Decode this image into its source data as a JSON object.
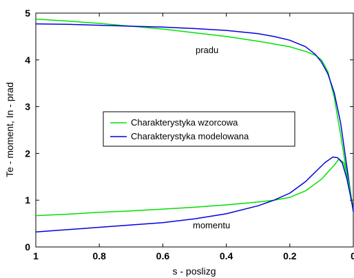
{
  "chart_data": {
    "type": "line",
    "title": "",
    "xlabel": "s - poslizg",
    "ylabel": "Te - moment, In - prad",
    "xlim": [
      1,
      0
    ],
    "ylim": [
      0,
      5
    ],
    "x_reversed": true,
    "xticks": [
      1,
      0.8,
      0.6,
      0.4,
      0.2,
      0
    ],
    "xtick_labels": [
      "1",
      "0.8",
      "0.6",
      "0.4",
      "0.2",
      "0"
    ],
    "yticks": [
      0,
      1,
      2,
      3,
      4,
      5
    ],
    "ytick_labels": [
      "0",
      "1",
      "2",
      "3",
      "4",
      "5"
    ],
    "grid": false,
    "legend": {
      "placement": "center-left",
      "entries": [
        "Charakterystyka wzorcowa",
        "Charakterystyka modelowana"
      ]
    },
    "annotations": [
      {
        "text": "pradu",
        "x": 0.47,
        "y": 4.25
      },
      {
        "text": "momentu",
        "x": 0.43,
        "y": 0.45
      }
    ],
    "colors": {
      "wzorcowa": "#00e000",
      "modelowana": "#0000e0"
    },
    "series": [
      {
        "name": "Charakterystyka wzorcowa",
        "group": "pradu",
        "color": "#00e000",
        "x": [
          1.0,
          0.9,
          0.8,
          0.7,
          0.6,
          0.5,
          0.4,
          0.3,
          0.25,
          0.2,
          0.15,
          0.12,
          0.1,
          0.08,
          0.06,
          0.04,
          0.02,
          0.0
        ],
        "y": [
          4.87,
          4.83,
          4.78,
          4.72,
          4.66,
          4.58,
          4.5,
          4.4,
          4.34,
          4.28,
          4.18,
          4.1,
          4.0,
          3.75,
          3.2,
          2.4,
          1.55,
          0.75
        ]
      },
      {
        "name": "Charakterystyka modelowana",
        "group": "pradu",
        "color": "#0000e0",
        "x": [
          1.0,
          0.9,
          0.8,
          0.7,
          0.6,
          0.5,
          0.4,
          0.3,
          0.25,
          0.2,
          0.15,
          0.12,
          0.1,
          0.08,
          0.06,
          0.04,
          0.02,
          0.0
        ],
        "y": [
          4.77,
          4.76,
          4.74,
          4.72,
          4.7,
          4.67,
          4.63,
          4.56,
          4.5,
          4.42,
          4.28,
          4.12,
          3.95,
          3.7,
          3.3,
          2.65,
          1.7,
          0.75
        ]
      },
      {
        "name": "Charakterystyka wzorcowa",
        "group": "momentu",
        "color": "#00e000",
        "x": [
          1.0,
          0.9,
          0.8,
          0.7,
          0.6,
          0.5,
          0.4,
          0.3,
          0.25,
          0.2,
          0.15,
          0.1,
          0.08,
          0.06,
          0.045,
          0.03,
          0.015,
          0.0
        ],
        "y": [
          0.67,
          0.7,
          0.74,
          0.77,
          0.81,
          0.85,
          0.9,
          0.96,
          1.0,
          1.06,
          1.2,
          1.45,
          1.6,
          1.75,
          1.88,
          1.8,
          1.4,
          0.8
        ]
      },
      {
        "name": "Charakterystyka modelowana",
        "group": "momentu",
        "color": "#0000e0",
        "x": [
          1.0,
          0.9,
          0.8,
          0.7,
          0.6,
          0.5,
          0.4,
          0.3,
          0.25,
          0.2,
          0.15,
          0.12,
          0.09,
          0.065,
          0.05,
          0.035,
          0.02,
          0.0
        ],
        "y": [
          0.32,
          0.37,
          0.42,
          0.47,
          0.52,
          0.6,
          0.71,
          0.88,
          1.0,
          1.15,
          1.4,
          1.6,
          1.8,
          1.92,
          1.91,
          1.8,
          1.45,
          0.8
        ]
      }
    ]
  }
}
